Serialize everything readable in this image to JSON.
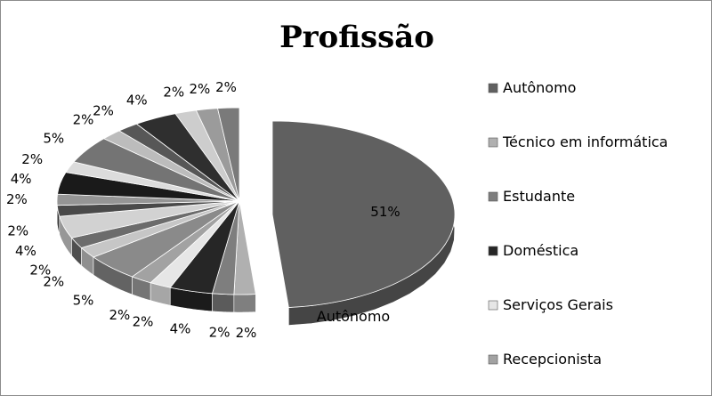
{
  "chart_data": {
    "type": "pie",
    "title": "Profissão",
    "callout_label": "Autônomo",
    "slices": [
      {
        "label": "Autônomo",
        "percent": 51,
        "color": "#606060"
      },
      {
        "label": "Técnico em informática",
        "percent": 2,
        "color": "#b0b0b0"
      },
      {
        "label": "Estudante",
        "percent": 2,
        "color": "#7e7e7e"
      },
      {
        "label": "Doméstica",
        "percent": 4,
        "color": "#262626"
      },
      {
        "label": "Serviços Gerais",
        "percent": 2,
        "color": "#e6e6e6"
      },
      {
        "label": "Recepcionista",
        "percent": 2,
        "color": "#a2a2a2"
      },
      {
        "label": "",
        "percent": 5,
        "color": "#8a8a8a"
      },
      {
        "label": "",
        "percent": 2,
        "color": "#c6c6c6"
      },
      {
        "label": "",
        "percent": 2,
        "color": "#6c6c6c"
      },
      {
        "label": "",
        "percent": 4,
        "color": "#d2d2d2"
      },
      {
        "label": "",
        "percent": 2,
        "color": "#4a4a4a"
      },
      {
        "label": "",
        "percent": 2,
        "color": "#959595"
      },
      {
        "label": "",
        "percent": 4,
        "color": "#1a1a1a"
      },
      {
        "label": "",
        "percent": 2,
        "color": "#dcdcdc"
      },
      {
        "label": "",
        "percent": 5,
        "color": "#747474"
      },
      {
        "label": "",
        "percent": 2,
        "color": "#bcbcbc"
      },
      {
        "label": "",
        "percent": 2,
        "color": "#575757"
      },
      {
        "label": "",
        "percent": 4,
        "color": "#2f2f2f"
      },
      {
        "label": "",
        "percent": 2,
        "color": "#cdcdcd"
      },
      {
        "label": "",
        "percent": 2,
        "color": "#9b9b9b"
      },
      {
        "label": "",
        "percent": 2,
        "color": "#7a7a7a"
      }
    ],
    "legend_position": "right"
  }
}
